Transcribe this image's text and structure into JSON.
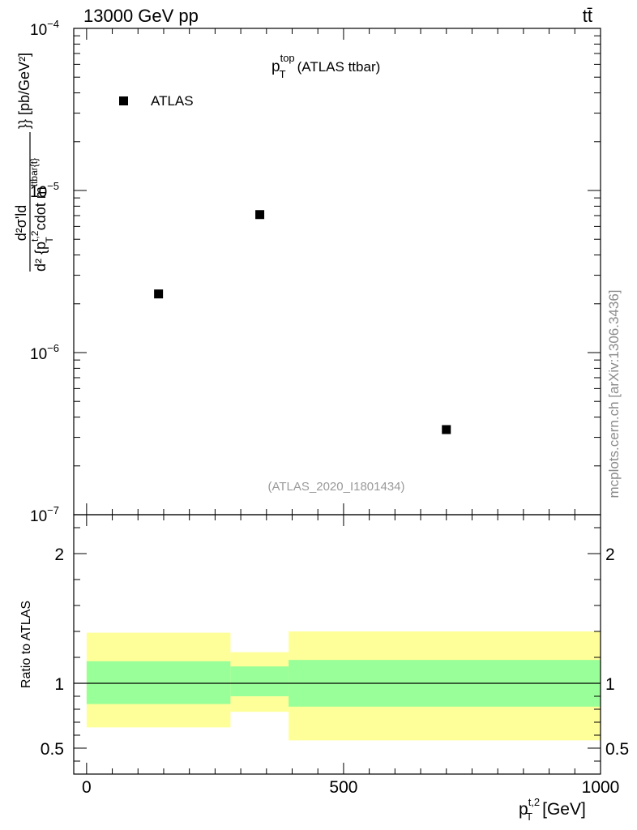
{
  "header": {
    "energy_label": "13000 GeV pp",
    "process_label": "tt̄",
    "side_label": "mcplots.cern.ch [arXiv:1306.3436]"
  },
  "chart_data": [
    {
      "type": "scatter",
      "title_main": "p",
      "title_sup": "top",
      "title_sub": "T",
      "title_rest": "(ATLAS ttbar)",
      "analysis_label": "(ATLAS_2020_I1801434)",
      "ylabel": "d²σ/d{p_T^{t,2} cdot m^{ttbar{t}}} [pb/GeV²]",
      "ylabel_num": "d²σ'ld",
      "ylabel_den_a": "d² {p",
      "ylabel_den_a_sup": "t,2",
      "ylabel_den_a_sub": "T",
      "ylabel_den_b": "cdot m",
      "ylabel_den_b_sup": "ttbar{t}",
      "ylabel_tail": "}} [pb/GeV²]",
      "yscale": "log",
      "ylim": [
        1e-07,
        0.0001
      ],
      "xlim": [
        -25,
        1000
      ],
      "y_ticks": [
        {
          "exp": -7,
          "label": "10",
          "sup": "−7"
        },
        {
          "exp": -6,
          "label": "10",
          "sup": "−6"
        },
        {
          "exp": -5,
          "label": "10",
          "sup": "−5"
        },
        {
          "exp": -4,
          "label": "10",
          "sup": "−4"
        }
      ],
      "legend": {
        "position": "top-left",
        "entries": [
          "ATLAS"
        ]
      },
      "series": [
        {
          "name": "ATLAS",
          "color": "#000000",
          "points": [
            {
              "x": 140,
              "y": 2.3e-06
            },
            {
              "x": 337,
              "y": 7.1e-06
            },
            {
              "x": 700,
              "y": 3.35e-07
            }
          ]
        }
      ]
    },
    {
      "type": "band",
      "ylabel": "Ratio to ATLAS",
      "ylim": [
        0.3,
        2.3
      ],
      "xlim": [
        -25,
        1000
      ],
      "y_tick_labels": [
        "0.5",
        "1",
        "2"
      ],
      "y_tick_values": [
        0.5,
        1,
        2
      ],
      "x_tick_labels": [
        "0",
        "500",
        "1000"
      ],
      "x_tick_values": [
        0,
        500,
        1000
      ],
      "xlabel_main": "p",
      "xlabel_sup": "t,2",
      "xlabel_sub": "T",
      "xlabel_unit": "[GeV]",
      "reference_line": 1,
      "colors": {
        "outer": "#ffff99",
        "inner": "#99ff99"
      },
      "bins": [
        {
          "x0": 0,
          "x1": 280,
          "outer": [
            0.66,
            1.39
          ],
          "inner": [
            0.84,
            1.17
          ]
        },
        {
          "x0": 280,
          "x1": 393,
          "outer": [
            0.78,
            1.24
          ],
          "inner": [
            0.9,
            1.13
          ]
        },
        {
          "x0": 393,
          "x1": 1000,
          "outer": [
            0.56,
            1.4
          ],
          "inner": [
            0.82,
            1.18
          ]
        }
      ]
    }
  ]
}
